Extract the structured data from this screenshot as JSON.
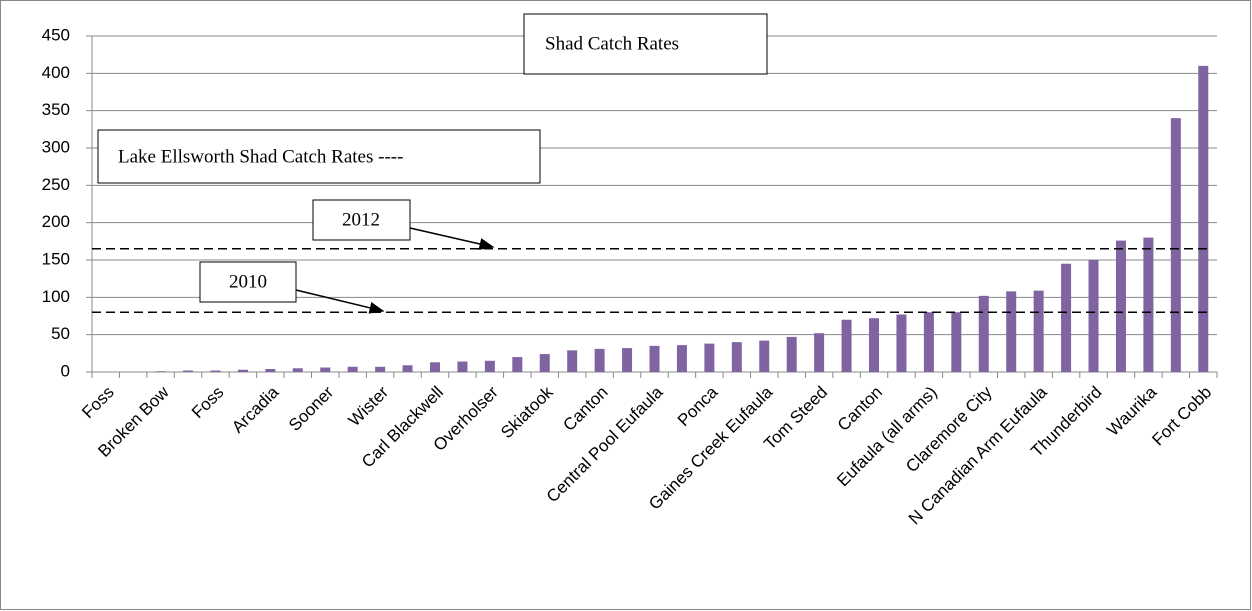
{
  "chart_data": {
    "type": "bar",
    "title": "Shad Catch Rates",
    "annotation": "Lake Ellsworth Shad Catch Rates ----",
    "categories": [
      "Foss",
      null,
      "Broken Bow",
      null,
      "Foss",
      null,
      "Arcadia",
      null,
      "Sooner",
      null,
      "Wister",
      null,
      "Carl Blackwell",
      null,
      "Overholser",
      null,
      "Skiatook",
      null,
      "Canton",
      null,
      "Central Pool Eufaula",
      null,
      "Ponca",
      null,
      "Gaines Creek Eufaula",
      null,
      "Tom Steed",
      null,
      "Canton",
      null,
      "Eufaula (all arms)",
      null,
      "Claremore City",
      null,
      "N Canadian Arm Eufaula",
      null,
      "Thunderbird",
      null,
      "Waurika",
      null,
      "Fort Cobb"
    ],
    "values": [
      0,
      0,
      1,
      2,
      2,
      3,
      4,
      5,
      6,
      7,
      7,
      9,
      13,
      14,
      15,
      20,
      24,
      29,
      31,
      32,
      35,
      36,
      38,
      40,
      42,
      47,
      52,
      70,
      72,
      77,
      80,
      80,
      102,
      108,
      109,
      145,
      150,
      176,
      180,
      340,
      410
    ],
    "color": "#8064a2",
    "reference_lines": [
      {
        "label": "2012",
        "value": 165
      },
      {
        "label": "2010",
        "value": 80
      }
    ],
    "ylim": [
      0,
      450
    ],
    "yticks": [
      0,
      50,
      100,
      150,
      200,
      250,
      300,
      350,
      400,
      450
    ],
    "grid": true
  }
}
